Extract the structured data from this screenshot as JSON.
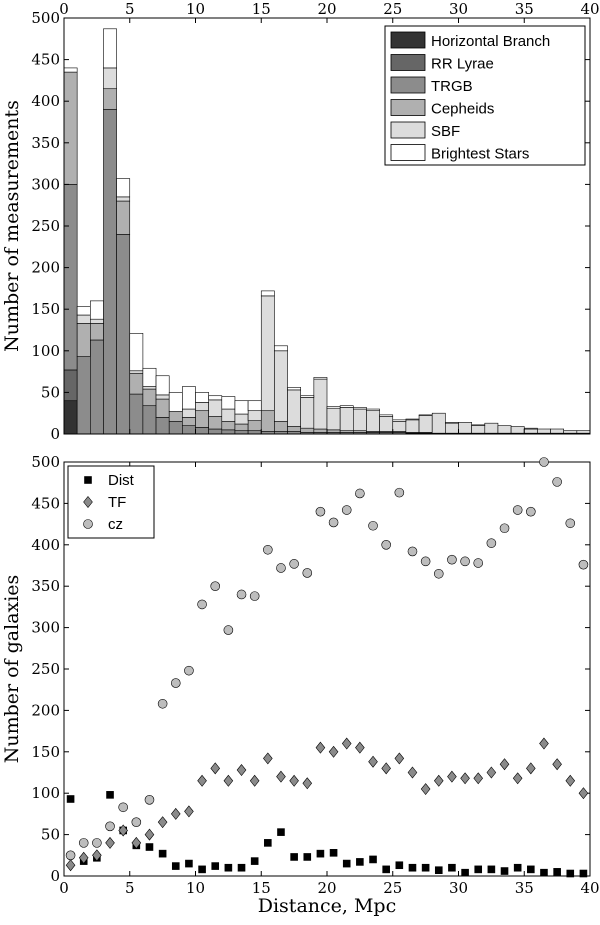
{
  "chart_data": [
    {
      "type": "bar",
      "stacked_histogram": true,
      "xlim": [
        0,
        40
      ],
      "ylim": [
        0,
        500
      ],
      "bin_width": 1,
      "bin_starts": [
        0,
        1,
        2,
        3,
        4,
        5,
        6,
        7,
        8,
        9,
        10,
        11,
        12,
        13,
        14,
        15,
        16,
        17,
        18,
        19,
        20,
        21,
        22,
        23,
        24,
        25,
        26,
        27,
        28,
        29,
        30,
        31,
        32,
        33,
        34,
        35,
        36,
        37,
        38,
        39
      ],
      "xticks": [
        0,
        5,
        10,
        15,
        20,
        25,
        30,
        35,
        40
      ],
      "yticks": [
        0,
        50,
        100,
        150,
        200,
        250,
        300,
        350,
        400,
        450,
        500
      ],
      "ylabel": "Number of measurements",
      "legend_position": "top-right",
      "series": [
        {
          "name": "Horizontal Branch",
          "color": "#333333",
          "values": [
            40,
            0,
            0,
            0,
            0,
            0,
            0,
            0,
            0,
            0,
            0,
            0,
            0,
            0,
            0,
            0,
            0,
            0,
            0,
            0,
            0,
            0,
            0,
            0,
            0,
            0,
            0,
            0,
            0,
            0,
            0,
            0,
            0,
            0,
            0,
            0,
            0,
            0,
            0,
            0
          ]
        },
        {
          "name": "RR Lyrae",
          "color": "#666666",
          "values": [
            37,
            0,
            0,
            0,
            0,
            0,
            0,
            0,
            0,
            0,
            0,
            0,
            0,
            0,
            0,
            0,
            0,
            0,
            0,
            0,
            0,
            0,
            0,
            0,
            0,
            0,
            0,
            0,
            0,
            0,
            0,
            0,
            0,
            0,
            0,
            0,
            0,
            0,
            0,
            0
          ]
        },
        {
          "name": "TRGB",
          "color": "#8c8c8c",
          "values": [
            223,
            93,
            113,
            390,
            240,
            48,
            34,
            20,
            15,
            10,
            8,
            6,
            5,
            4,
            4,
            3,
            3,
            3,
            2,
            2,
            2,
            2,
            2,
            2,
            2,
            2,
            1,
            1,
            1,
            1,
            1,
            1,
            1,
            1,
            1,
            1,
            1,
            1,
            1,
            1
          ]
        },
        {
          "name": "Cepheids",
          "color": "#b0b0b0",
          "values": [
            135,
            40,
            20,
            25,
            40,
            25,
            20,
            22,
            12,
            10,
            20,
            15,
            10,
            8,
            12,
            25,
            12,
            6,
            5,
            4,
            3,
            2,
            2,
            1,
            1,
            1,
            1,
            1,
            0,
            0,
            0,
            0,
            0,
            0,
            0,
            0,
            0,
            0,
            0,
            0
          ]
        },
        {
          "name": "SBF",
          "color": "#dcdcdc",
          "values": [
            0,
            10,
            5,
            25,
            5,
            3,
            3,
            5,
            0,
            10,
            10,
            20,
            15,
            12,
            12,
            138,
            85,
            44,
            37,
            60,
            26,
            28,
            26,
            25,
            18,
            12,
            15,
            20,
            24,
            12,
            13,
            9,
            12,
            9,
            8,
            5,
            5,
            5,
            3,
            3
          ]
        },
        {
          "name": "Brightest Stars",
          "color": "#ffffff",
          "values": [
            5,
            10,
            22,
            47,
            22,
            45,
            22,
            23,
            23,
            27,
            12,
            5,
            15,
            16,
            12,
            6,
            6,
            3,
            2,
            2,
            2,
            2,
            2,
            2,
            2,
            2,
            1,
            1,
            0,
            1,
            0,
            1,
            0,
            0,
            0,
            1,
            0,
            0,
            0,
            0
          ]
        }
      ]
    },
    {
      "type": "scatter",
      "xlim": [
        0,
        40
      ],
      "ylim": [
        0,
        500
      ],
      "xticks": [
        0,
        5,
        10,
        15,
        20,
        25,
        30,
        35,
        40
      ],
      "yticks": [
        0,
        50,
        100,
        150,
        200,
        250,
        300,
        350,
        400,
        450,
        500
      ],
      "xlabel": "Distance, Mpc",
      "ylabel": "Number of galaxies",
      "legend_position": "top-left",
      "x": [
        0.5,
        1.5,
        2.5,
        3.5,
        4.5,
        5.5,
        6.5,
        7.5,
        8.5,
        9.5,
        10.5,
        11.5,
        12.5,
        13.5,
        14.5,
        15.5,
        16.5,
        17.5,
        18.5,
        19.5,
        20.5,
        21.5,
        22.5,
        23.5,
        24.5,
        25.5,
        26.5,
        27.5,
        28.5,
        29.5,
        30.5,
        31.5,
        32.5,
        33.5,
        34.5,
        35.5,
        36.5,
        37.5,
        38.5,
        39.5
      ],
      "series": [
        {
          "name": "Dist",
          "marker": "square",
          "color": "#000000",
          "values": [
            93,
            18,
            22,
            98,
            55,
            37,
            35,
            27,
            12,
            15,
            8,
            12,
            10,
            10,
            18,
            40,
            53,
            23,
            23,
            27,
            28,
            15,
            17,
            20,
            8,
            13,
            10,
            10,
            7,
            10,
            4,
            8,
            8,
            6,
            10,
            8,
            4,
            5,
            3,
            3
          ]
        },
        {
          "name": "TF",
          "marker": "diamond",
          "color": "#8a8a8a",
          "values": [
            13,
            22,
            25,
            40,
            55,
            40,
            50,
            65,
            75,
            78,
            115,
            130,
            115,
            128,
            115,
            142,
            120,
            115,
            112,
            155,
            150,
            160,
            155,
            138,
            130,
            142,
            125,
            105,
            115,
            120,
            118,
            118,
            125,
            135,
            118,
            130,
            160,
            135,
            115,
            100
          ]
        },
        {
          "name": "cz",
          "marker": "circle",
          "color": "#bdbdbd",
          "values": [
            25,
            40,
            40,
            60,
            83,
            65,
            92,
            208,
            233,
            248,
            328,
            350,
            297,
            340,
            338,
            394,
            372,
            377,
            366,
            440,
            427,
            442,
            462,
            423,
            400,
            463,
            392,
            380,
            365,
            382,
            380,
            378,
            402,
            420,
            442,
            440,
            500,
            476,
            426,
            376
          ]
        }
      ]
    }
  ]
}
